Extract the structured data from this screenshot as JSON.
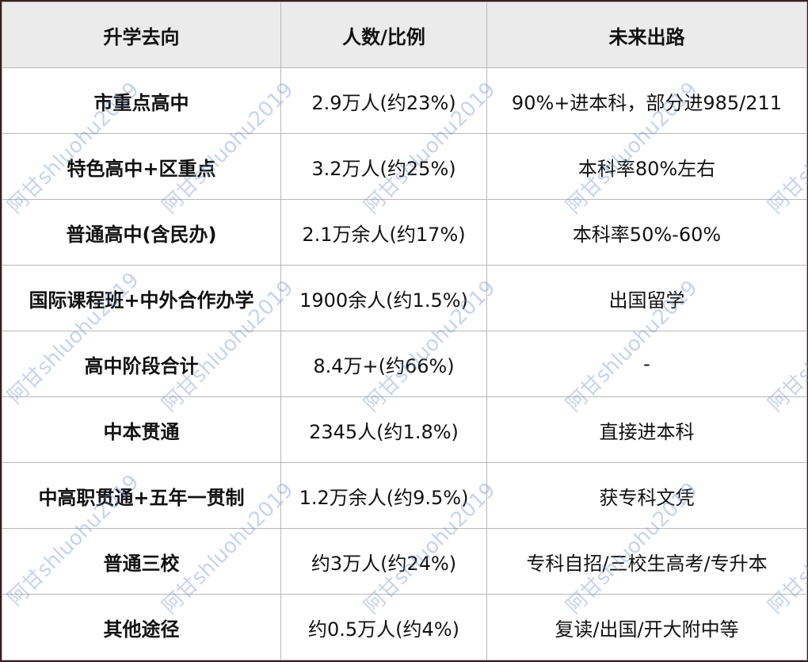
{
  "table": {
    "headers": [
      "升学去向",
      "人数/比例",
      "未来出路"
    ],
    "rows": [
      [
        "市重点高中",
        "2.9万人(约23%)",
        "90%+进本科，部分进985/211"
      ],
      [
        "特色高中+区重点",
        "3.2万人(约25%)",
        "本科率80%左右"
      ],
      [
        "普通高中(含民办)",
        "2.1万余人(约17%)",
        "本科率50%-60%"
      ],
      [
        "国际课程班+中外合作办学",
        "1900余人(约1.5%)",
        "出国留学"
      ],
      [
        "高中阶段合计",
        "8.4万+(约66%)",
        "-"
      ],
      [
        "中本贯通",
        "2345人(约1.8%)",
        "直接进本科"
      ],
      [
        "中高职贯通+五年一贯制",
        "1.2万余人(约9.5%)",
        "获专科文凭"
      ],
      [
        "普通三校",
        "约3万人(约24%)",
        "专科自招/三校生高考/专升本"
      ],
      [
        "其他途径",
        "约0.5万人(约4%)",
        "复读/出国/开大附中等"
      ]
    ]
  },
  "watermark": "阿甘shluohu2019",
  "colors": {
    "header_bg": "#ebebeb",
    "frame": "#3a1f1f",
    "grid": "#b8b8b8",
    "watermark": "#6e8cd2"
  }
}
